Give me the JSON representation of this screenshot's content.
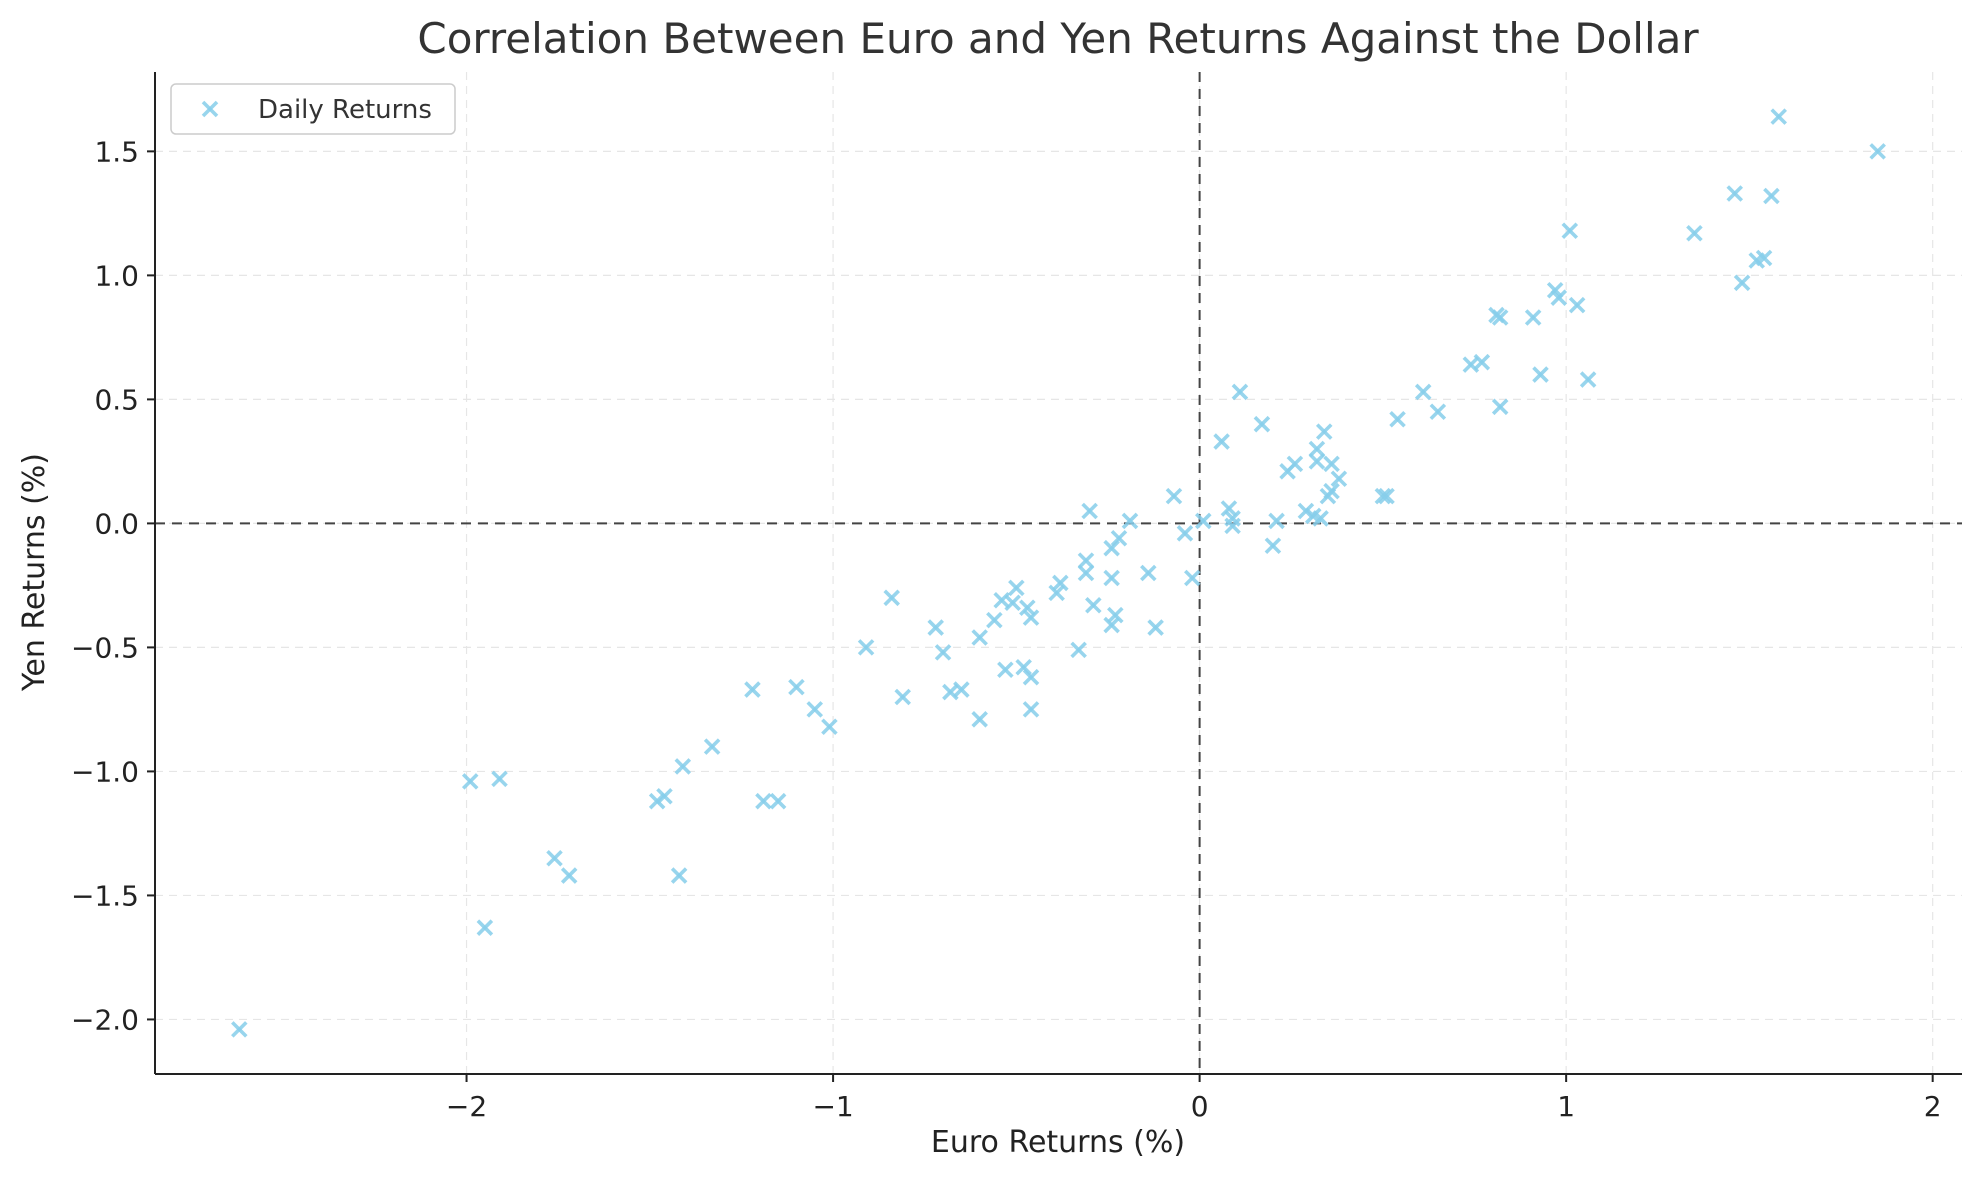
{
  "chart_data": {
    "type": "scatter",
    "title": "Correlation Between Euro and Yen Returns Against the Dollar",
    "xlabel": "Euro Returns (%)",
    "ylabel": "Yen Returns (%)",
    "xlim": [
      -2.85,
      2.08
    ],
    "ylim": [
      -2.22,
      1.82
    ],
    "xticks": [
      -2,
      -1,
      0,
      1,
      2
    ],
    "yticks": [
      -2.0,
      -1.5,
      -1.0,
      -0.5,
      0.0,
      0.5,
      1.0,
      1.5
    ],
    "xtick_labels": [
      "−2",
      "−1",
      "0",
      "1",
      "2"
    ],
    "ytick_labels": [
      "−2.0",
      "−1.5",
      "−1.0",
      "−0.5",
      "0.0",
      "0.5",
      "1.0",
      "1.5"
    ],
    "grid": true,
    "reference_lines": {
      "x": 0,
      "y": 0,
      "style": "dashed"
    },
    "legend": {
      "position": "top-left",
      "entries": [
        "Daily Returns"
      ]
    },
    "marker": "x",
    "color": "#87CEEB",
    "series": [
      {
        "name": "Daily Returns",
        "points": [
          [
            -2.62,
            -2.04
          ],
          [
            -1.99,
            -1.04
          ],
          [
            -1.95,
            -1.63
          ],
          [
            -1.91,
            -1.03
          ],
          [
            -1.76,
            -1.35
          ],
          [
            -1.72,
            -1.42
          ],
          [
            -1.48,
            -1.12
          ],
          [
            -1.46,
            -1.1
          ],
          [
            -1.42,
            -1.42
          ],
          [
            -1.41,
            -0.98
          ],
          [
            -1.33,
            -0.9
          ],
          [
            -1.22,
            -0.67
          ],
          [
            -1.19,
            -1.12
          ],
          [
            -1.15,
            -1.12
          ],
          [
            -1.1,
            -0.66
          ],
          [
            -1.05,
            -0.75
          ],
          [
            -1.01,
            -0.82
          ],
          [
            -0.91,
            -0.5
          ],
          [
            -0.84,
            -0.3
          ],
          [
            -0.81,
            -0.7
          ],
          [
            -0.72,
            -0.42
          ],
          [
            -0.7,
            -0.52
          ],
          [
            -0.68,
            -0.68
          ],
          [
            -0.65,
            -0.67
          ],
          [
            -0.6,
            -0.46
          ],
          [
            -0.6,
            -0.79
          ],
          [
            -0.56,
            -0.39
          ],
          [
            -0.54,
            -0.31
          ],
          [
            -0.53,
            -0.59
          ],
          [
            -0.51,
            -0.32
          ],
          [
            -0.5,
            -0.26
          ],
          [
            -0.48,
            -0.58
          ],
          [
            -0.47,
            -0.34
          ],
          [
            -0.46,
            -0.38
          ],
          [
            -0.46,
            -0.62
          ],
          [
            -0.46,
            -0.75
          ],
          [
            -0.39,
            -0.28
          ],
          [
            -0.38,
            -0.24
          ],
          [
            -0.33,
            -0.51
          ],
          [
            -0.31,
            -0.15
          ],
          [
            -0.31,
            -0.2
          ],
          [
            -0.3,
            0.05
          ],
          [
            -0.29,
            -0.33
          ],
          [
            -0.24,
            -0.41
          ],
          [
            -0.24,
            -0.22
          ],
          [
            -0.24,
            -0.1
          ],
          [
            -0.23,
            -0.37
          ],
          [
            -0.22,
            -0.06
          ],
          [
            -0.19,
            0.01
          ],
          [
            -0.14,
            -0.2
          ],
          [
            -0.12,
            -0.42
          ],
          [
            -0.07,
            0.11
          ],
          [
            -0.04,
            -0.04
          ],
          [
            -0.02,
            -0.22
          ],
          [
            0.01,
            0.01
          ],
          [
            0.06,
            0.33
          ],
          [
            0.08,
            0.06
          ],
          [
            0.09,
            0.02
          ],
          [
            0.09,
            -0.01
          ],
          [
            0.11,
            0.53
          ],
          [
            0.17,
            0.4
          ],
          [
            0.2,
            -0.09
          ],
          [
            0.21,
            0.01
          ],
          [
            0.24,
            0.21
          ],
          [
            0.26,
            0.24
          ],
          [
            0.29,
            0.05
          ],
          [
            0.31,
            0.03
          ],
          [
            0.32,
            0.3
          ],
          [
            0.32,
            0.25
          ],
          [
            0.33,
            0.02
          ],
          [
            0.34,
            0.37
          ],
          [
            0.35,
            0.11
          ],
          [
            0.36,
            0.13
          ],
          [
            0.36,
            0.24
          ],
          [
            0.38,
            0.18
          ],
          [
            0.5,
            0.11
          ],
          [
            0.51,
            0.11
          ],
          [
            0.54,
            0.42
          ],
          [
            0.61,
            0.53
          ],
          [
            0.65,
            0.45
          ],
          [
            0.74,
            0.64
          ],
          [
            0.77,
            0.65
          ],
          [
            0.81,
            0.84
          ],
          [
            0.82,
            0.83
          ],
          [
            0.82,
            0.47
          ],
          [
            0.91,
            0.83
          ],
          [
            0.93,
            0.6
          ],
          [
            0.97,
            0.94
          ],
          [
            0.98,
            0.91
          ],
          [
            1.01,
            1.18
          ],
          [
            1.03,
            0.88
          ],
          [
            1.06,
            0.58
          ],
          [
            1.35,
            1.17
          ],
          [
            1.46,
            1.33
          ],
          [
            1.48,
            0.97
          ],
          [
            1.52,
            1.06
          ],
          [
            1.54,
            1.07
          ],
          [
            1.56,
            1.32
          ],
          [
            1.58,
            1.64
          ],
          [
            1.85,
            1.5
          ]
        ]
      }
    ]
  }
}
